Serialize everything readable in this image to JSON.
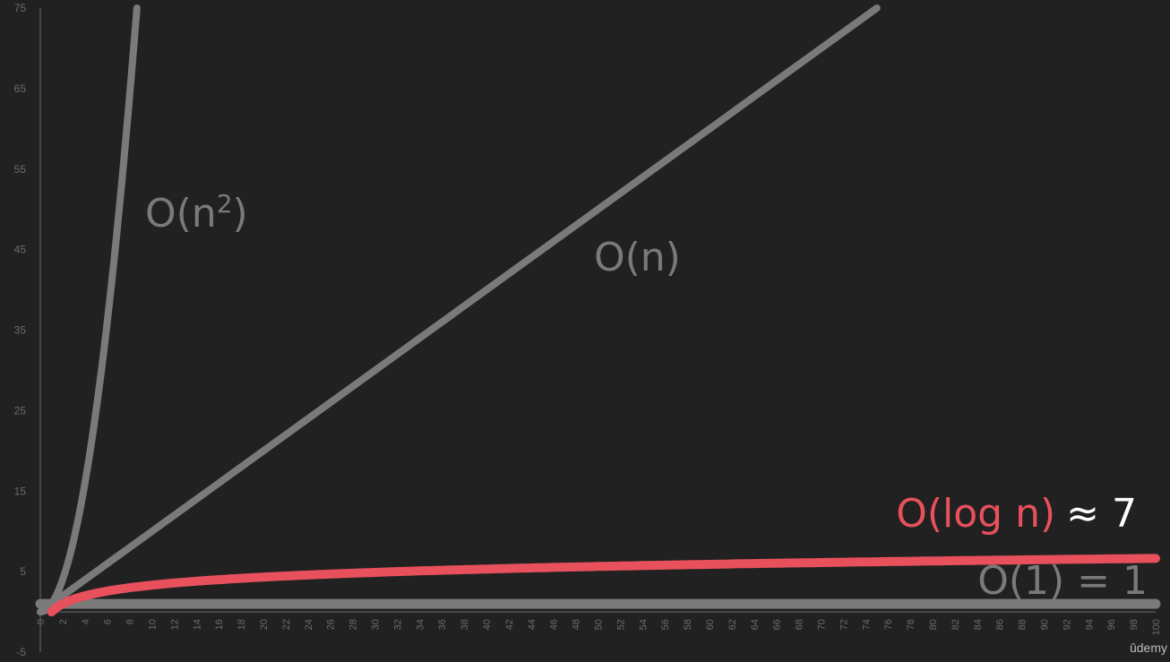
{
  "chart_data": {
    "type": "line",
    "xlim": [
      0,
      100
    ],
    "ylim": [
      -5,
      75
    ],
    "x_ticks": [
      0,
      2,
      4,
      6,
      8,
      10,
      12,
      14,
      16,
      18,
      20,
      22,
      24,
      26,
      28,
      30,
      32,
      34,
      36,
      38,
      40,
      42,
      44,
      46,
      48,
      50,
      52,
      54,
      56,
      58,
      60,
      62,
      64,
      66,
      68,
      70,
      72,
      74,
      76,
      78,
      80,
      82,
      84,
      86,
      88,
      90,
      92,
      94,
      96,
      98,
      100
    ],
    "y_ticks": [
      75,
      65,
      55,
      45,
      35,
      25,
      15,
      5,
      -5
    ],
    "grid": false,
    "legend": "none",
    "series": [
      {
        "name": "O(n²)",
        "label_base": "O(n",
        "label_sup": "2",
        "label_close": ")",
        "color": "#7a7a7a",
        "x": [
          0,
          1,
          2,
          3,
          4,
          5,
          6,
          7,
          8,
          8.66
        ],
        "y": [
          0,
          1,
          4,
          9,
          16,
          25,
          36,
          49,
          64,
          75
        ]
      },
      {
        "name": "O(n)",
        "color": "#7a7a7a",
        "x": [
          0,
          75
        ],
        "y": [
          0,
          75
        ]
      },
      {
        "name": "O(log n)",
        "color": "#e8515b",
        "x": [
          1,
          2,
          4,
          8,
          16,
          32,
          64,
          100
        ],
        "y": [
          0,
          1,
          2,
          3,
          4,
          5,
          6,
          6.64
        ]
      },
      {
        "name": "O(1) = 1",
        "color": "#7a7a7a",
        "x": [
          0,
          100
        ],
        "y": [
          1,
          1
        ]
      }
    ],
    "annotations": {
      "on_squared": "O(n²)",
      "on": "O(n)",
      "ologn": "O(log n)",
      "ologn_approx": "≈ 7",
      "o1": "O(1) = 1"
    },
    "colors": {
      "background": "#212121",
      "axis": "#6b6b6b",
      "gray_curve": "#7a7a7a",
      "highlight": "#e8515b"
    }
  },
  "brand": "ûdemy"
}
